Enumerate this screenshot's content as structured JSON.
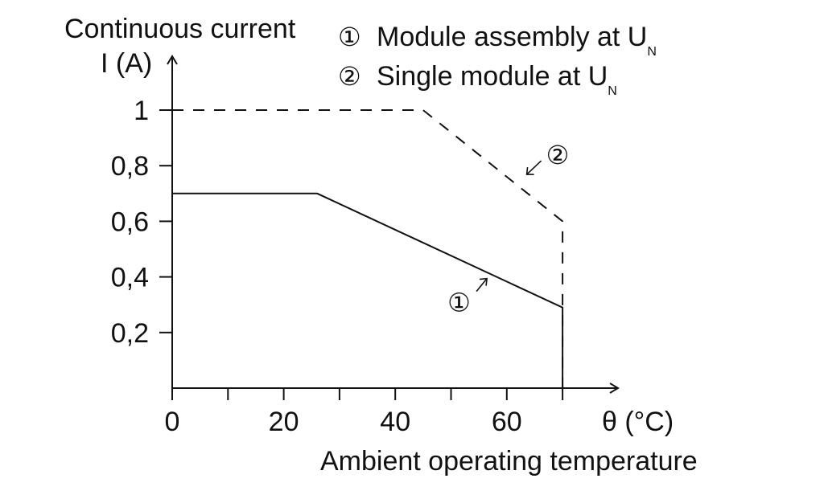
{
  "chart_data": {
    "type": "line",
    "ylabel_line1": "Continuous current",
    "ylabel_line2": "I (A)",
    "xlabel": "Ambient operating temperature",
    "xunit": "θ (°C)",
    "xlim": [
      0,
      80
    ],
    "ylim": [
      0,
      1.1
    ],
    "x_ticks": [
      0,
      10,
      20,
      30,
      40,
      50,
      60,
      70
    ],
    "x_tick_labels": [
      "0",
      "20",
      "40",
      "60"
    ],
    "x_tick_label_values": [
      0,
      20,
      40,
      60
    ],
    "y_ticks": [
      0.2,
      0.4,
      0.6,
      0.8,
      1
    ],
    "y_tick_labels": [
      "0,2",
      "0,4",
      "0,6",
      "0,8",
      "1"
    ],
    "grid": false,
    "legend_position": "top",
    "legend": [
      {
        "marker": "①",
        "text": "Module assembly at U",
        "subscript": "N"
      },
      {
        "marker": "②",
        "text": "Single module at U",
        "subscript": "N"
      }
    ],
    "series": [
      {
        "marker": "①",
        "style": "solid",
        "points": [
          [
            0,
            0.7
          ],
          [
            26,
            0.7
          ],
          [
            70,
            0.29
          ],
          [
            70,
            0
          ]
        ],
        "annotation_at": [
          56,
          0.4
        ]
      },
      {
        "marker": "②",
        "style": "dashed",
        "points": [
          [
            0,
            1.0
          ],
          [
            45,
            1.0
          ],
          [
            70,
            0.6
          ],
          [
            70,
            0
          ]
        ],
        "annotation_at": [
          63,
          0.76
        ]
      }
    ],
    "colors": {
      "line": "#111111",
      "background": "#ffffff"
    }
  }
}
